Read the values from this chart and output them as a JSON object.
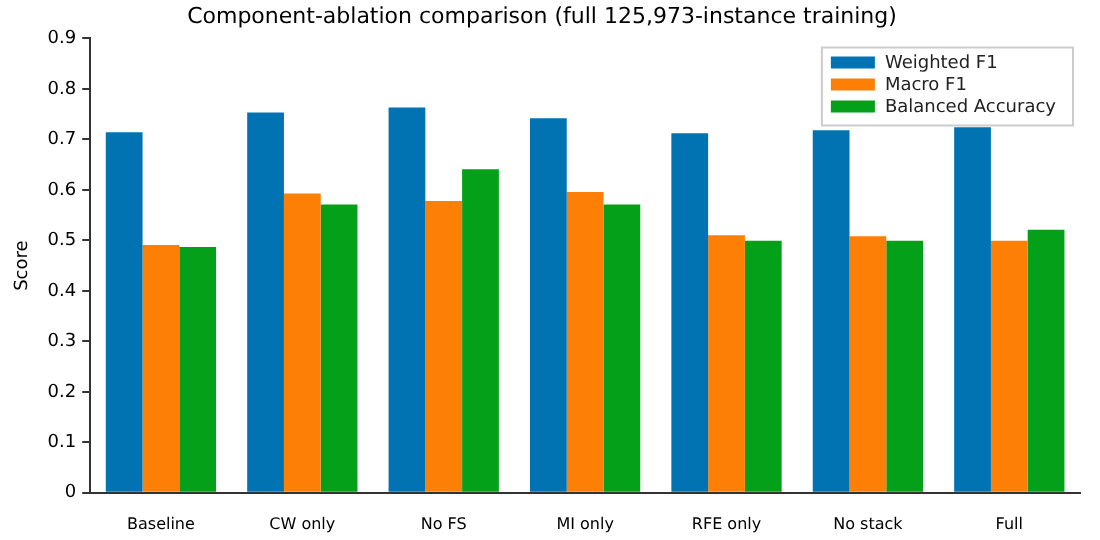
{
  "chart_data": {
    "type": "bar",
    "title": "Component-ablation comparison (full 125,973-instance training)",
    "ylabel": "Score",
    "categories": [
      "Baseline",
      "CW only",
      "No FS",
      "MI only",
      "RFE only",
      "No stack",
      "Full"
    ],
    "series": [
      {
        "name": "Weighted F1",
        "color": "#0173b2",
        "values": [
          0.714,
          0.753,
          0.763,
          0.742,
          0.712,
          0.718,
          0.724
        ]
      },
      {
        "name": "Macro F1",
        "color": "#fd7f06",
        "values": [
          0.491,
          0.593,
          0.578,
          0.596,
          0.51,
          0.508,
          0.499
        ]
      },
      {
        "name": "Balanced Accuracy",
        "color": "#04a019",
        "values": [
          0.487,
          0.571,
          0.641,
          0.571,
          0.499,
          0.499,
          0.521
        ]
      }
    ],
    "ylim": [
      0,
      0.9
    ],
    "yticks": [
      0,
      0.1,
      0.2,
      0.3,
      0.4,
      0.5,
      0.6,
      0.7,
      0.8,
      0.9
    ],
    "grid": false,
    "legend": "top right"
  }
}
